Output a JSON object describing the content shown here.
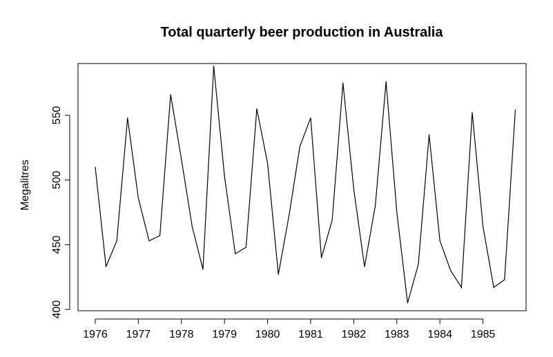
{
  "chart_data": {
    "type": "line",
    "title": "Total quarterly beer production in Australia",
    "xlabel": "",
    "ylabel": "Megalitres",
    "xlim": [
      1975.6,
      1986.0
    ],
    "ylim": [
      399,
      590
    ],
    "grid": false,
    "x_ticks": [
      1976,
      1977,
      1978,
      1979,
      1980,
      1981,
      1982,
      1983,
      1984,
      1985
    ],
    "x_tick_labels": [
      "1976",
      "1977",
      "1978",
      "1979",
      "1980",
      "1981",
      "1982",
      "1983",
      "1984",
      "1985"
    ],
    "y_ticks": [
      400,
      450,
      500,
      550
    ],
    "y_tick_labels": [
      "400",
      "450",
      "500",
      "550"
    ],
    "x": [
      1976.0,
      1976.25,
      1976.5,
      1976.75,
      1977.0,
      1977.25,
      1977.5,
      1977.75,
      1978.0,
      1978.25,
      1978.5,
      1978.75,
      1979.0,
      1979.25,
      1979.5,
      1979.75,
      1980.0,
      1980.25,
      1980.5,
      1980.75,
      1981.0,
      1981.25,
      1981.5,
      1981.75,
      1982.0,
      1982.25,
      1982.5,
      1982.75,
      1983.0,
      1983.25,
      1983.5,
      1983.75,
      1984.0,
      1984.25,
      1984.5,
      1984.75,
      1985.0,
      1985.25,
      1985.5,
      1985.75
    ],
    "series": [
      {
        "values": [
          510,
          433,
          453,
          548,
          486,
          453,
          457,
          566,
          516,
          464,
          431,
          588,
          503,
          443,
          448,
          555,
          513,
          427,
          473,
          526,
          548,
          440,
          469,
          575,
          493,
          433,
          480,
          576,
          475,
          405,
          435,
          535,
          453,
          430,
          417,
          552,
          464,
          417,
          423,
          554
        ]
      }
    ]
  }
}
